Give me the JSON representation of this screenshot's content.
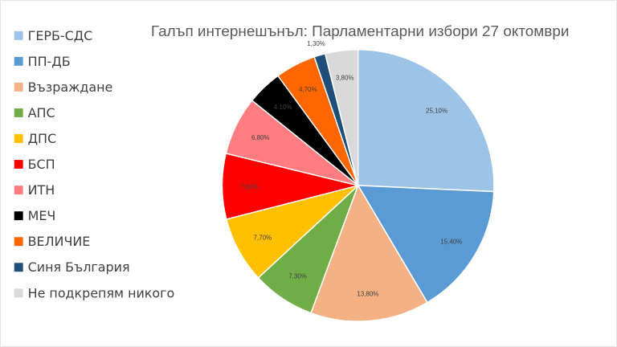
{
  "chart_data": {
    "type": "pie",
    "title": "Галъп интернешънъл: Парламентарни избори 27 октомври",
    "legend_position": "left",
    "categories": [
      "ГЕРБ-СДС",
      "ПП-ДБ",
      "Възраждане",
      "АПС",
      "ДПС",
      "БСП",
      "ИТН",
      "МЕЧ",
      "ВЕЛИЧИЕ",
      "Синя България",
      "Не подкрепям никого"
    ],
    "values": [
      25.1,
      15.4,
      13.8,
      7.3,
      7.7,
      7.6,
      6.8,
      4.1,
      4.7,
      1.3,
      3.8
    ],
    "data_labels": [
      "25,10%",
      "15,40%",
      "13,80%",
      "7,30%",
      "7,70%",
      "7,60%",
      "6,80%",
      "4,10%",
      "4,70%",
      "1,30%",
      "3,80%"
    ],
    "colors": [
      "#9dc3e6",
      "#5b9bd5",
      "#f4b183",
      "#70ad47",
      "#ffc000",
      "#ff0000",
      "#ff7c80",
      "#000000",
      "#ff6600",
      "#1f4e79",
      "#d9d9d9"
    ]
  }
}
